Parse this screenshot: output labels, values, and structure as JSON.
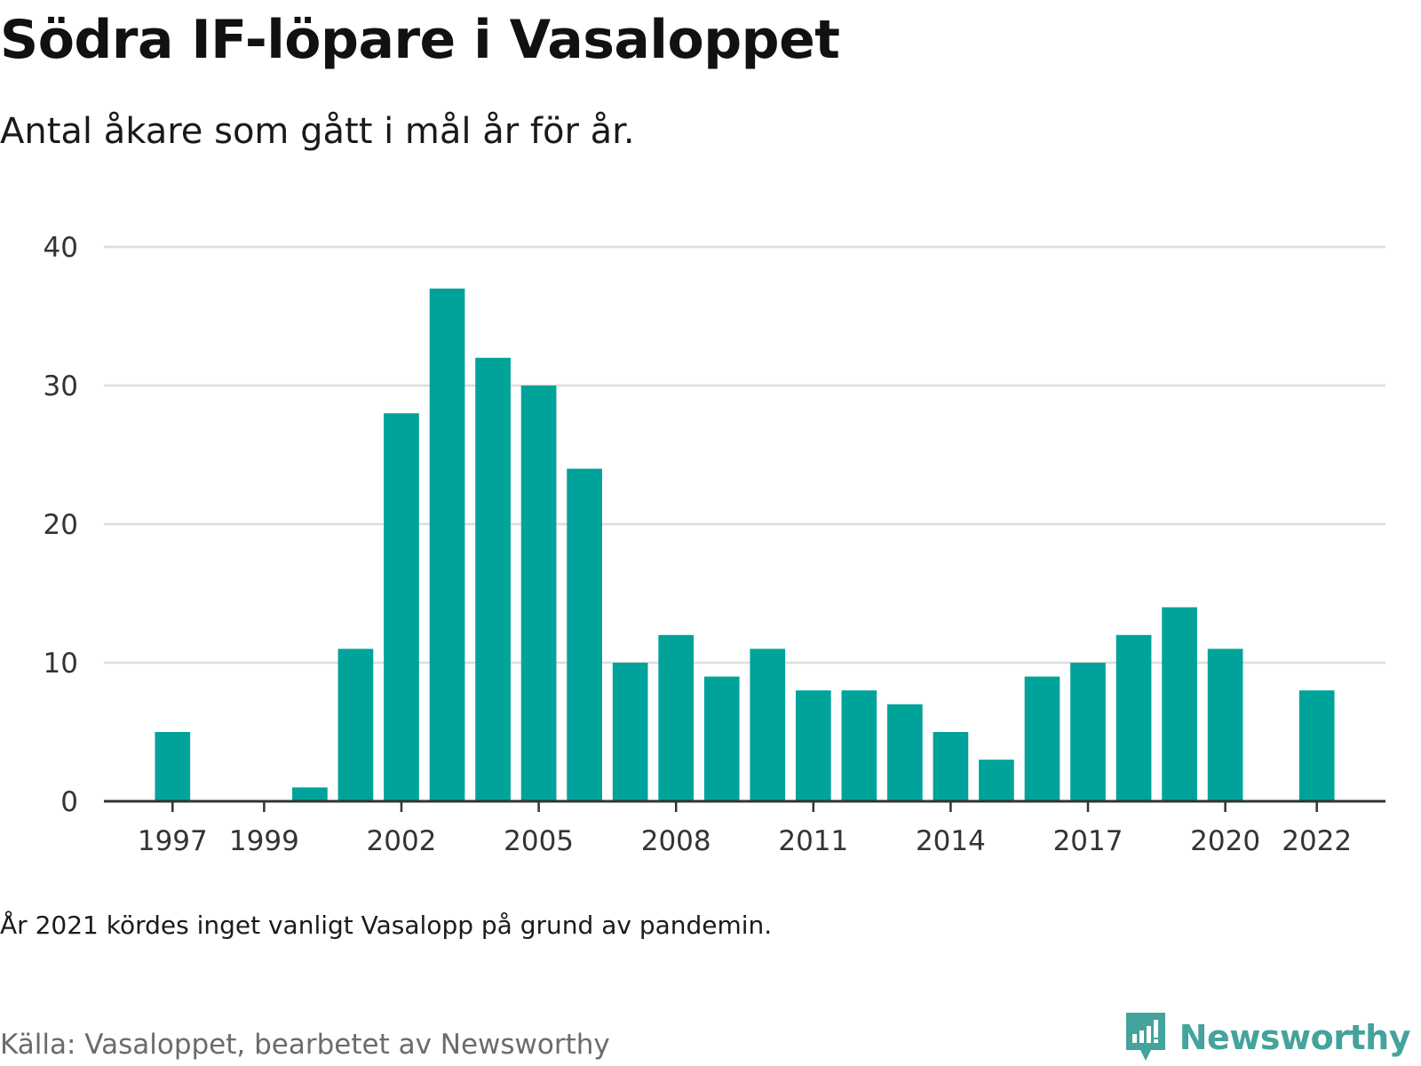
{
  "header": {
    "title": "Södra IF-löpare i Vasaloppet",
    "subtitle": "Antal åkare som gått i mål år för år."
  },
  "footer": {
    "note": "År 2021 kördes inget vanligt Vasalopp på grund av pandemin.",
    "source": "Källa: Vasaloppet, bearbetet av Newsworthy",
    "brand": "Newsworthy",
    "brand_icon": "newsworthy-logo-icon"
  },
  "colors": {
    "bar": "#00a39a",
    "grid": "#dcdcdc",
    "axis": "#333333",
    "brand": "#44a39c"
  },
  "chart_data": {
    "type": "bar",
    "title": "Södra IF-löpare i Vasaloppet",
    "subtitle": "Antal åkare som gått i mål år för år.",
    "xlabel": "",
    "ylabel": "",
    "ylim": [
      0,
      40
    ],
    "yticks": [
      0,
      10,
      20,
      30,
      40
    ],
    "xticks": [
      "1997",
      "1999",
      "2002",
      "2005",
      "2008",
      "2011",
      "2014",
      "2017",
      "2020",
      "2022"
    ],
    "grid": true,
    "categories": [
      "1996",
      "1997",
      "1998",
      "1999",
      "2000",
      "2001",
      "2002",
      "2003",
      "2004",
      "2005",
      "2006",
      "2007",
      "2008",
      "2009",
      "2010",
      "2011",
      "2012",
      "2013",
      "2014",
      "2015",
      "2016",
      "2017",
      "2018",
      "2019",
      "2020",
      "2021",
      "2022",
      "2023"
    ],
    "values": [
      0,
      5,
      0,
      0,
      1,
      11,
      28,
      37,
      32,
      30,
      24,
      10,
      12,
      9,
      11,
      8,
      8,
      7,
      5,
      3,
      9,
      10,
      12,
      14,
      11,
      0,
      8,
      0
    ]
  }
}
